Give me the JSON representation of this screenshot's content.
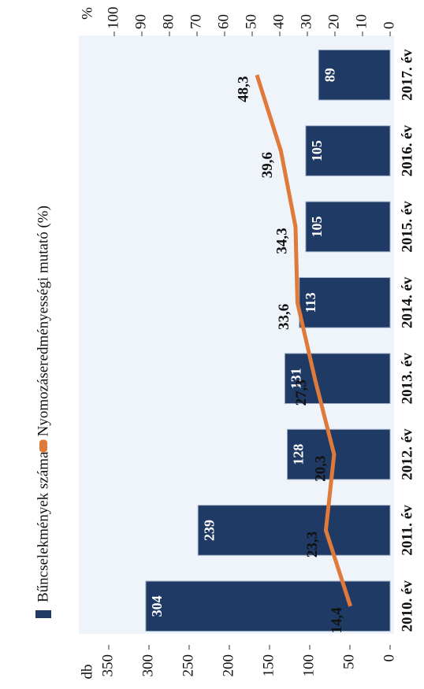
{
  "chart_data": {
    "type": "bar",
    "categories": [
      "2010. év",
      "2011. év",
      "2012. év",
      "2013. év",
      "2014. év",
      "2015. év",
      "2016. év",
      "2017. év"
    ],
    "series": [
      {
        "name": "Bűncselekmények száma",
        "color": "#1f3a64",
        "values": [
          304,
          239,
          128,
          131,
          113,
          105,
          105,
          89
        ]
      },
      {
        "name": "Nyomozáseredményességi mutató (%)",
        "color": "#e07a3a",
        "type": "line",
        "axis": "y2",
        "values": [
          14.4,
          23.3,
          20.3,
          27.3,
          33.6,
          34.3,
          39.6,
          48.3
        ],
        "value_labels": [
          "14,4",
          "23,3",
          "20,3",
          "27,3",
          "33,6",
          "34,3",
          "39,6",
          "48,3"
        ]
      }
    ],
    "ylabel": "db",
    "y2label": "%",
    "ylim": [
      0,
      350
    ],
    "yticks": [
      0,
      50,
      100,
      150,
      200,
      250,
      300,
      350
    ],
    "y2lim": [
      0,
      100
    ],
    "y2ticks": [
      0,
      10,
      20,
      30,
      40,
      50,
      60,
      70,
      80,
      90,
      100
    ]
  }
}
